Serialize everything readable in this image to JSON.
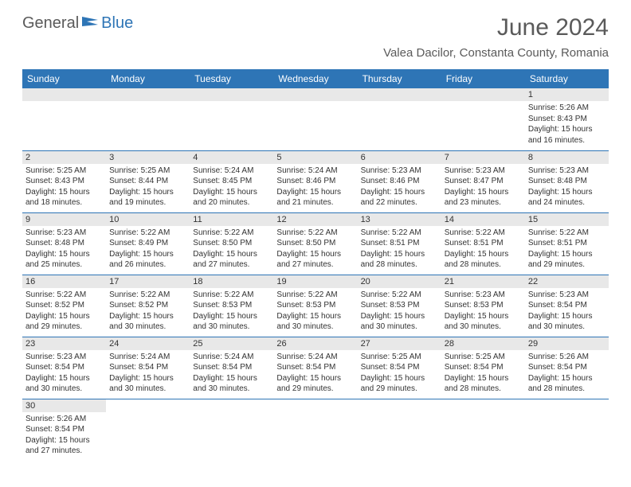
{
  "logo": {
    "text1": "General",
    "text2": "Blue"
  },
  "title": "June 2024",
  "subtitle": "Valea Dacilor, Constanta County, Romania",
  "colors": {
    "header_bg": "#2e75b6",
    "header_text": "#ffffff",
    "daynum_bg": "#e8e8e8",
    "border": "#2e75b6",
    "text": "#333333",
    "logo_gray": "#5a5a5a",
    "logo_blue": "#2e75b6"
  },
  "dayNames": [
    "Sunday",
    "Monday",
    "Tuesday",
    "Wednesday",
    "Thursday",
    "Friday",
    "Saturday"
  ],
  "weeks": [
    [
      {
        "n": "",
        "sr": "",
        "ss": "",
        "dl": ""
      },
      {
        "n": "",
        "sr": "",
        "ss": "",
        "dl": ""
      },
      {
        "n": "",
        "sr": "",
        "ss": "",
        "dl": ""
      },
      {
        "n": "",
        "sr": "",
        "ss": "",
        "dl": ""
      },
      {
        "n": "",
        "sr": "",
        "ss": "",
        "dl": ""
      },
      {
        "n": "",
        "sr": "",
        "ss": "",
        "dl": ""
      },
      {
        "n": "1",
        "sr": "Sunrise: 5:26 AM",
        "ss": "Sunset: 8:43 PM",
        "dl": "Daylight: 15 hours and 16 minutes."
      }
    ],
    [
      {
        "n": "2",
        "sr": "Sunrise: 5:25 AM",
        "ss": "Sunset: 8:43 PM",
        "dl": "Daylight: 15 hours and 18 minutes."
      },
      {
        "n": "3",
        "sr": "Sunrise: 5:25 AM",
        "ss": "Sunset: 8:44 PM",
        "dl": "Daylight: 15 hours and 19 minutes."
      },
      {
        "n": "4",
        "sr": "Sunrise: 5:24 AM",
        "ss": "Sunset: 8:45 PM",
        "dl": "Daylight: 15 hours and 20 minutes."
      },
      {
        "n": "5",
        "sr": "Sunrise: 5:24 AM",
        "ss": "Sunset: 8:46 PM",
        "dl": "Daylight: 15 hours and 21 minutes."
      },
      {
        "n": "6",
        "sr": "Sunrise: 5:23 AM",
        "ss": "Sunset: 8:46 PM",
        "dl": "Daylight: 15 hours and 22 minutes."
      },
      {
        "n": "7",
        "sr": "Sunrise: 5:23 AM",
        "ss": "Sunset: 8:47 PM",
        "dl": "Daylight: 15 hours and 23 minutes."
      },
      {
        "n": "8",
        "sr": "Sunrise: 5:23 AM",
        "ss": "Sunset: 8:48 PM",
        "dl": "Daylight: 15 hours and 24 minutes."
      }
    ],
    [
      {
        "n": "9",
        "sr": "Sunrise: 5:23 AM",
        "ss": "Sunset: 8:48 PM",
        "dl": "Daylight: 15 hours and 25 minutes."
      },
      {
        "n": "10",
        "sr": "Sunrise: 5:22 AM",
        "ss": "Sunset: 8:49 PM",
        "dl": "Daylight: 15 hours and 26 minutes."
      },
      {
        "n": "11",
        "sr": "Sunrise: 5:22 AM",
        "ss": "Sunset: 8:50 PM",
        "dl": "Daylight: 15 hours and 27 minutes."
      },
      {
        "n": "12",
        "sr": "Sunrise: 5:22 AM",
        "ss": "Sunset: 8:50 PM",
        "dl": "Daylight: 15 hours and 27 minutes."
      },
      {
        "n": "13",
        "sr": "Sunrise: 5:22 AM",
        "ss": "Sunset: 8:51 PM",
        "dl": "Daylight: 15 hours and 28 minutes."
      },
      {
        "n": "14",
        "sr": "Sunrise: 5:22 AM",
        "ss": "Sunset: 8:51 PM",
        "dl": "Daylight: 15 hours and 28 minutes."
      },
      {
        "n": "15",
        "sr": "Sunrise: 5:22 AM",
        "ss": "Sunset: 8:51 PM",
        "dl": "Daylight: 15 hours and 29 minutes."
      }
    ],
    [
      {
        "n": "16",
        "sr": "Sunrise: 5:22 AM",
        "ss": "Sunset: 8:52 PM",
        "dl": "Daylight: 15 hours and 29 minutes."
      },
      {
        "n": "17",
        "sr": "Sunrise: 5:22 AM",
        "ss": "Sunset: 8:52 PM",
        "dl": "Daylight: 15 hours and 30 minutes."
      },
      {
        "n": "18",
        "sr": "Sunrise: 5:22 AM",
        "ss": "Sunset: 8:53 PM",
        "dl": "Daylight: 15 hours and 30 minutes."
      },
      {
        "n": "19",
        "sr": "Sunrise: 5:22 AM",
        "ss": "Sunset: 8:53 PM",
        "dl": "Daylight: 15 hours and 30 minutes."
      },
      {
        "n": "20",
        "sr": "Sunrise: 5:22 AM",
        "ss": "Sunset: 8:53 PM",
        "dl": "Daylight: 15 hours and 30 minutes."
      },
      {
        "n": "21",
        "sr": "Sunrise: 5:23 AM",
        "ss": "Sunset: 8:53 PM",
        "dl": "Daylight: 15 hours and 30 minutes."
      },
      {
        "n": "22",
        "sr": "Sunrise: 5:23 AM",
        "ss": "Sunset: 8:54 PM",
        "dl": "Daylight: 15 hours and 30 minutes."
      }
    ],
    [
      {
        "n": "23",
        "sr": "Sunrise: 5:23 AM",
        "ss": "Sunset: 8:54 PM",
        "dl": "Daylight: 15 hours and 30 minutes."
      },
      {
        "n": "24",
        "sr": "Sunrise: 5:24 AM",
        "ss": "Sunset: 8:54 PM",
        "dl": "Daylight: 15 hours and 30 minutes."
      },
      {
        "n": "25",
        "sr": "Sunrise: 5:24 AM",
        "ss": "Sunset: 8:54 PM",
        "dl": "Daylight: 15 hours and 30 minutes."
      },
      {
        "n": "26",
        "sr": "Sunrise: 5:24 AM",
        "ss": "Sunset: 8:54 PM",
        "dl": "Daylight: 15 hours and 29 minutes."
      },
      {
        "n": "27",
        "sr": "Sunrise: 5:25 AM",
        "ss": "Sunset: 8:54 PM",
        "dl": "Daylight: 15 hours and 29 minutes."
      },
      {
        "n": "28",
        "sr": "Sunrise: 5:25 AM",
        "ss": "Sunset: 8:54 PM",
        "dl": "Daylight: 15 hours and 28 minutes."
      },
      {
        "n": "29",
        "sr": "Sunrise: 5:26 AM",
        "ss": "Sunset: 8:54 PM",
        "dl": "Daylight: 15 hours and 28 minutes."
      }
    ],
    [
      {
        "n": "30",
        "sr": "Sunrise: 5:26 AM",
        "ss": "Sunset: 8:54 PM",
        "dl": "Daylight: 15 hours and 27 minutes."
      },
      {
        "n": "",
        "sr": "",
        "ss": "",
        "dl": ""
      },
      {
        "n": "",
        "sr": "",
        "ss": "",
        "dl": ""
      },
      {
        "n": "",
        "sr": "",
        "ss": "",
        "dl": ""
      },
      {
        "n": "",
        "sr": "",
        "ss": "",
        "dl": ""
      },
      {
        "n": "",
        "sr": "",
        "ss": "",
        "dl": ""
      },
      {
        "n": "",
        "sr": "",
        "ss": "",
        "dl": ""
      }
    ]
  ]
}
